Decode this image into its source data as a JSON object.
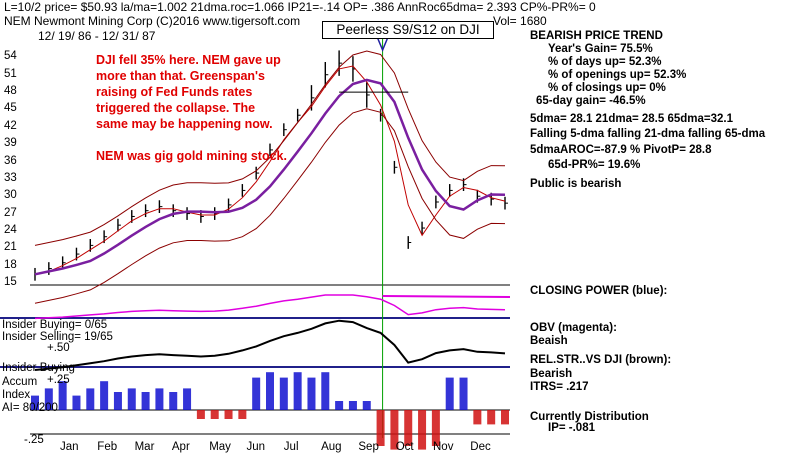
{
  "header": {
    "line1": "L=10/2  price= $50.93  la/ma=1.002 21dma.roc=1.066 IP21=-.14 OP= .386 AnnRoc65dma= 2.393 CP%-PR%=  0",
    "line2_left": "NEM   Newmont Mining Corp  (C)2016 www.tigersoft.com",
    "line2_right": "Vol= 1680",
    "date_range": "12/ 19/ 86 -  12/ 31/ 87",
    "peerless": "Peerless S9/S12 on DJI"
  },
  "annotation": {
    "l1": "DJI fell 35% here.  NEM gave up",
    "l2": "more than that.  Greenspan's",
    "l3": "raising of Fed Funds rates",
    "l4": "triggered the collapse.  The",
    "l5": "same may be happening now.",
    "l6": "NEM was gig gold mining stock."
  },
  "sidebar": {
    "trend_title": "BEARISH PRICE TREND",
    "years_gain": "Year's Gain= 75.5%",
    "days_up": "% of days up= 52.3%",
    "openings_up": "% of openings up= 52.3%",
    "closings_up": "% of closings up= 0%",
    "gain65": "65-day gain= -46.5%",
    "dma": "5dma= 28.1  21dma= 28.5  65dma=32.1",
    "falling": "Falling 5-dma  falling 21-dma  falling 65-dma",
    "aroc": "5dmaAROC=-87.9 %  PivotP= 28.8",
    "pr65": "65d-PR%= 19.6%",
    "public": "Public is bearish",
    "closing_power": "CLOSING POWER (blue):",
    "obv": "OBV (magenta):",
    "obv_val": "Beaish",
    "relstr": "REL.STR..VS DJI (brown):",
    "relstr_val": "Bearish",
    "itrs": "ITRS= .217",
    "dist": "Currently Distribution",
    "ip": "IP= -.081"
  },
  "left_labels": {
    "insider_buying": "Insider Buying= 0/65",
    "insider_selling": "Insider Selling= 19/65",
    "plus50": "+.50",
    "insider_buying2": "Insider Buying",
    "accum": "Accum",
    "plus25": "+.25",
    "index": "Index",
    "ai": "AI= 80/200",
    "minus25": "-.25"
  },
  "colors": {
    "price_bar": "#000000",
    "ma_red": "#c00000",
    "ma_purple": "#7a1fa0",
    "obv": "#e000e0",
    "closing_power": "#000000",
    "accum_pos": "#1010d0",
    "accum_neg": "#d01010",
    "signal_line": "#00a000",
    "band": "#8b0000"
  },
  "chart_data": [
    {
      "type": "line",
      "title": "Newmont Mining Corp",
      "ylim": [
        15,
        57
      ],
      "y_ticks": [
        54,
        51,
        48,
        45,
        42,
        39,
        36,
        33,
        30,
        27,
        24,
        21,
        18,
        15
      ],
      "x_ticks": [
        "Jan",
        "Feb",
        "Mar",
        "Apr",
        "May",
        "Jun",
        "Jul",
        "Aug",
        "Sep",
        "Oct",
        "Nov",
        "Dec"
      ],
      "series": [
        {
          "values": [
            16.5,
            17.5,
            18.5,
            20,
            21.5,
            23,
            25,
            26.5,
            27.5,
            28.2,
            27.5,
            27,
            26.5,
            27,
            28.5,
            31,
            34,
            38,
            41.5,
            44,
            47,
            51,
            53,
            52,
            47.5,
            44,
            35,
            22,
            24.5,
            29,
            31,
            32,
            30,
            29.5,
            28.8
          ]
        }
      ]
    }
  ]
}
